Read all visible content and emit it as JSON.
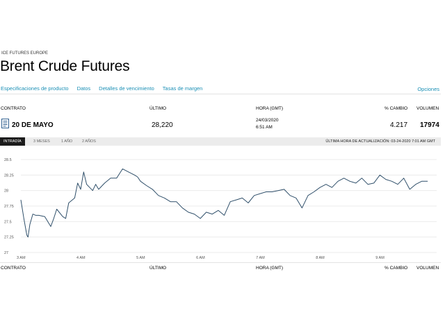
{
  "header": {
    "exchange": "ICE FUTURES EUROPE",
    "title": "Brent Crude Futures"
  },
  "tabs": [
    "Especificaciones de producto",
    "Datos",
    "Detalles de vencimiento",
    "Tasas de margen"
  ],
  "active_tab": "Datos",
  "options_label": "Opciones",
  "columns": {
    "contrato": "CONTRATO",
    "ultimo": "ÚLTIMO",
    "hora": "HORA (GMT)",
    "cambio": "% CAMBIO",
    "volumen": "VOLUMEN"
  },
  "row": {
    "contract": "20 DE MAYO",
    "last": "28,220",
    "date": "24/03/2020",
    "time": "6:51 AM",
    "change": "4.217",
    "volume": "17974"
  },
  "range_tabs": [
    "INTRADÍA",
    "3 MESES",
    "1 AÑO",
    "2 AÑOS"
  ],
  "active_range": "INTRADÍA",
  "last_update": "ÚLTIMA HORA DE ACTUALIZACIÓN: 03-24-2020 7:01 AM GMT",
  "colors": {
    "link": "#1a8fb5",
    "line": "#2f4f6a",
    "active_range_bg": "#1c1c1c"
  },
  "icons": {
    "contract": "document-icon"
  },
  "chart_data": {
    "type": "line",
    "x_ticks": [
      "3 AM",
      "4 AM",
      "5 AM",
      "6 AM",
      "7 AM",
      "8 AM",
      "9 AM"
    ],
    "y_ticks": [
      "28.5",
      "28.25",
      "28",
      "27.75",
      "27.5",
      "27.25",
      "27"
    ],
    "ylim": [
      27,
      28.5
    ],
    "grid": true,
    "series": [
      {
        "x": [
          3.0,
          3.05,
          3.1,
          3.12,
          3.15,
          3.2,
          3.25,
          3.3,
          3.4,
          3.5,
          3.55,
          3.6,
          3.7,
          3.75,
          3.8,
          3.9,
          3.95,
          4.0,
          4.05,
          4.1,
          4.15,
          4.2,
          4.25,
          4.3,
          4.4,
          4.5,
          4.6,
          4.7,
          4.8,
          4.9,
          4.95,
          5.0,
          5.1,
          5.2,
          5.3,
          5.4,
          5.5,
          5.6,
          5.7,
          5.8,
          5.9,
          6.0,
          6.1,
          6.2,
          6.3,
          6.4,
          6.5,
          6.6,
          6.7,
          6.8,
          6.9,
          7.0,
          7.1,
          7.2,
          7.3,
          7.4,
          7.5,
          7.6,
          7.7,
          7.8,
          7.9,
          8.0,
          8.1,
          8.2,
          8.3,
          8.4,
          8.5,
          8.6,
          8.7,
          8.8,
          8.9,
          9.0,
          9.1,
          9.2,
          9.3,
          9.4,
          9.5,
          9.6,
          9.7,
          9.8
        ],
        "values": [
          27.85,
          27.55,
          27.28,
          27.25,
          27.45,
          27.62,
          27.6,
          27.6,
          27.58,
          27.42,
          27.55,
          27.7,
          27.58,
          27.55,
          27.8,
          27.88,
          28.12,
          28.02,
          28.3,
          28.1,
          28.05,
          28.0,
          28.1,
          28.02,
          28.12,
          28.2,
          28.2,
          28.35,
          28.3,
          28.25,
          28.22,
          28.15,
          28.08,
          28.02,
          27.92,
          27.88,
          27.82,
          27.82,
          27.72,
          27.65,
          27.62,
          27.55,
          27.65,
          27.62,
          27.68,
          27.6,
          27.82,
          27.85,
          27.88,
          27.8,
          27.92,
          27.95,
          27.98,
          27.98,
          28.0,
          28.02,
          27.92,
          27.88,
          27.72,
          27.92,
          27.98,
          28.05,
          28.1,
          28.05,
          28.15,
          28.2,
          28.15,
          28.12,
          28.2,
          28.1,
          28.12,
          28.25,
          28.18,
          28.15,
          28.1,
          28.2,
          28.02,
          28.1,
          28.15,
          28.15
        ]
      }
    ]
  }
}
